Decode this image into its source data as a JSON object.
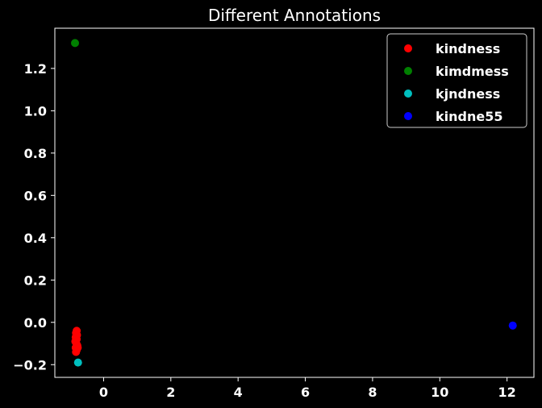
{
  "chart_data": {
    "type": "scatter",
    "title": "Different Annotations",
    "xlabel": "",
    "ylabel": "",
    "xlim": [
      -1.45,
      12.8
    ],
    "ylim": [
      -0.26,
      1.39
    ],
    "xticks": [
      0,
      2,
      4,
      6,
      8,
      10,
      12
    ],
    "xtick_labels": [
      "0",
      "2",
      "4",
      "6",
      "8",
      "10",
      "12"
    ],
    "yticks": [
      -0.2,
      0.0,
      0.2,
      0.4,
      0.6,
      0.8,
      1.0,
      1.2
    ],
    "ytick_labels": [
      "−0.2",
      "0.0",
      "0.2",
      "0.4",
      "0.6",
      "0.8",
      "1.0",
      "1.2"
    ],
    "grid": false,
    "legend_position": "top-right",
    "background": "#000000",
    "foreground": "#ffffff",
    "series": [
      {
        "name": "kindness",
        "color": "#ff0000",
        "points": [
          [
            -0.8,
            -0.04
          ],
          [
            -0.82,
            -0.05
          ],
          [
            -0.79,
            -0.06
          ],
          [
            -0.83,
            -0.07
          ],
          [
            -0.8,
            -0.08
          ],
          [
            -0.84,
            -0.09
          ],
          [
            -0.81,
            -0.1
          ],
          [
            -0.78,
            -0.11
          ],
          [
            -0.83,
            -0.12
          ],
          [
            -0.8,
            -0.13
          ],
          [
            -0.82,
            -0.14
          ],
          [
            -0.77,
            -0.12
          ]
        ]
      },
      {
        "name": "kimdmess",
        "color": "#008000",
        "points": [
          [
            -0.85,
            1.32
          ]
        ]
      },
      {
        "name": "kjndness",
        "color": "#00bfbf",
        "points": [
          [
            -0.76,
            -0.19
          ]
        ]
      },
      {
        "name": "kindne55",
        "color": "#0000ff",
        "points": [
          [
            12.17,
            -0.015
          ]
        ]
      }
    ]
  }
}
